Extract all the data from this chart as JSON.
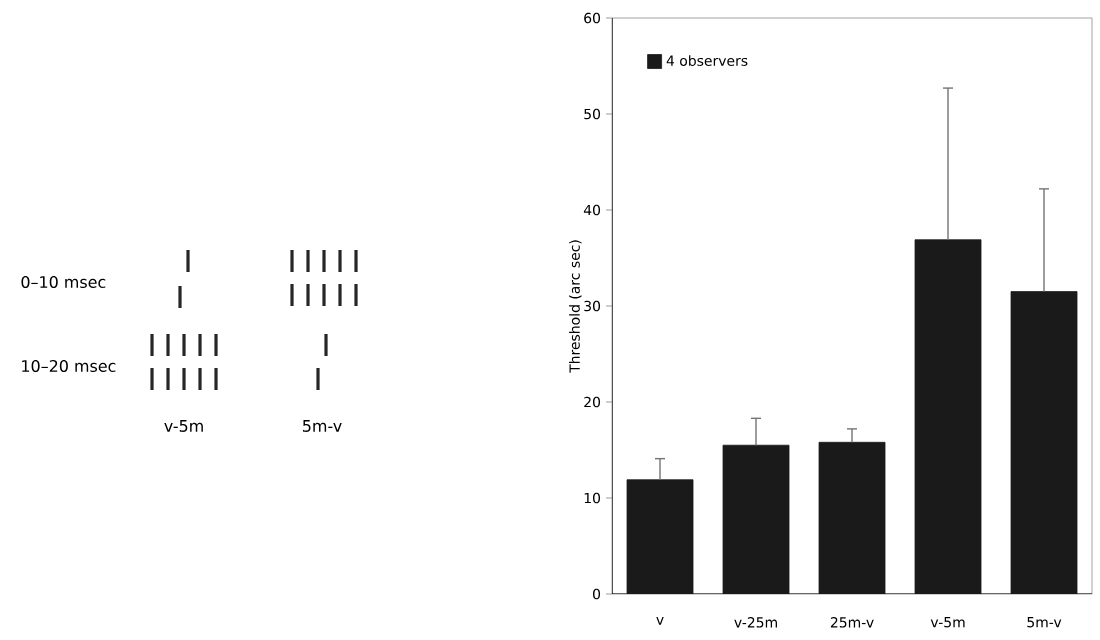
{
  "chart_data": {
    "type": "bar",
    "ylabel": "Threshold (arc sec)",
    "categories": [
      "v",
      "v-25m",
      "25m-v",
      "v-5m",
      "5m-v"
    ],
    "series": [
      {
        "name": "4 observers",
        "color": "#1a1a1a",
        "values": [
          11.9,
          15.5,
          15.8,
          36.9,
          31.5
        ],
        "errors": [
          [
            11.9,
            14.1
          ],
          [
            15.5,
            18.3
          ],
          [
            15.8,
            17.2
          ],
          [
            36.9,
            52.7
          ],
          [
            31.5,
            42.2
          ]
        ]
      }
    ],
    "ylim": [
      0,
      60
    ],
    "yticks": [
      0,
      10,
      20,
      30,
      40,
      50,
      60
    ],
    "legend": "top left",
    "grid": false,
    "annotations": [
      "0–10 msec",
      "10–20 msec",
      "v-5m",
      "5m-v"
    ]
  }
}
